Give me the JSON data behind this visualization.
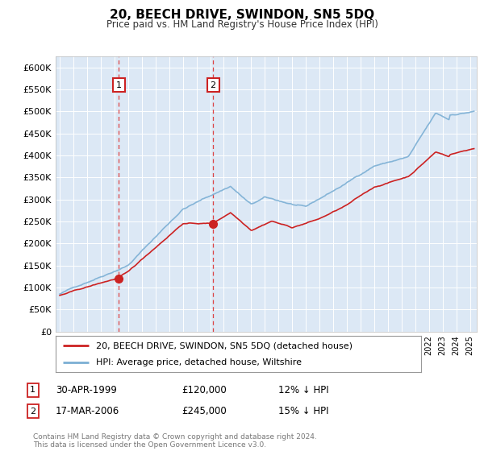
{
  "title": "20, BEECH DRIVE, SWINDON, SN5 5DQ",
  "subtitle": "Price paid vs. HM Land Registry's House Price Index (HPI)",
  "background_color": "#ffffff",
  "plot_bg_color": "#dce8f5",
  "ylim": [
    0,
    625000
  ],
  "yticks": [
    0,
    50000,
    100000,
    150000,
    200000,
    250000,
    300000,
    350000,
    400000,
    450000,
    500000,
    550000,
    600000
  ],
  "ytick_labels": [
    "£0",
    "£50K",
    "£100K",
    "£150K",
    "£200K",
    "£250K",
    "£300K",
    "£350K",
    "£400K",
    "£450K",
    "£500K",
    "£550K",
    "£600K"
  ],
  "hpi_color": "#7bafd4",
  "price_color": "#cc2222",
  "transaction1": {
    "date": 1999.33,
    "price": 120000,
    "label": "1",
    "date_str": "30-APR-1999",
    "pct": "12% ↓ HPI"
  },
  "transaction2": {
    "date": 2006.21,
    "price": 245000,
    "label": "2",
    "date_str": "17-MAR-2006",
    "pct": "15% ↓ HPI"
  },
  "legend_label_price": "20, BEECH DRIVE, SWINDON, SN5 5DQ (detached house)",
  "legend_label_hpi": "HPI: Average price, detached house, Wiltshire",
  "footer": "Contains HM Land Registry data © Crown copyright and database right 2024.\nThis data is licensed under the Open Government Licence v3.0.",
  "xmin": 1994.7,
  "xmax": 2025.5
}
